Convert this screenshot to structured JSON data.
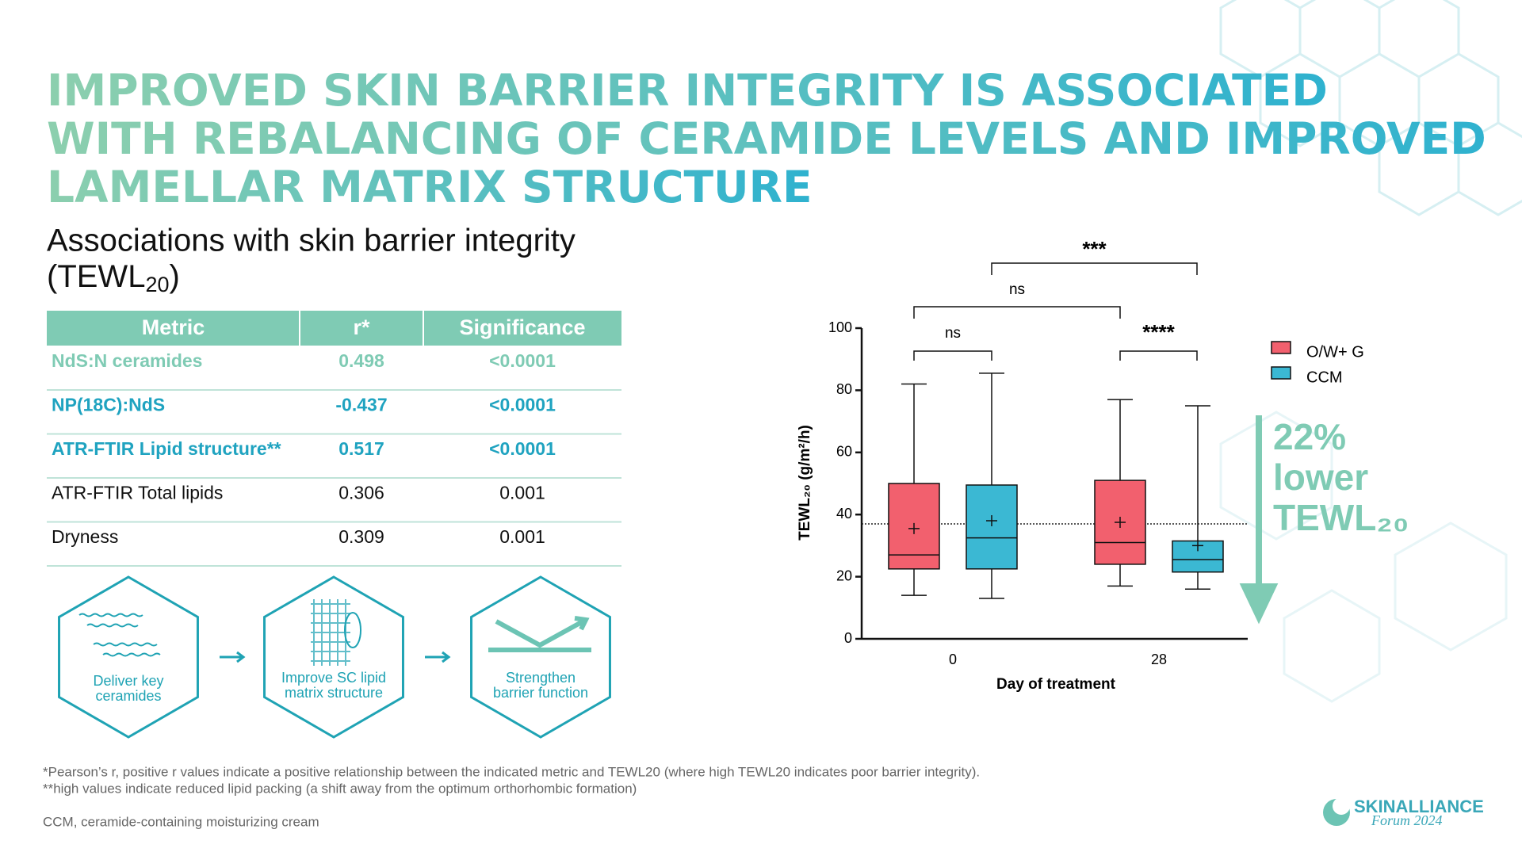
{
  "title": [
    "IMPROVED SKIN BARRIER INTEGRITY IS ASSOCIATED",
    "WITH REBALANCING OF CERAMIDE LEVELS AND IMPROVED",
    "LAMELLAR MATRIX STRUCTURE"
  ],
  "subtitle": [
    "Associations with skin barrier integrity",
    "(TEWL",
    "20",
    ")"
  ],
  "table": {
    "header": [
      "Metric",
      "r*",
      "Significance"
    ],
    "rows": [
      [
        "NdS:N ceramides",
        "0.498",
        "<0.0001"
      ],
      [
        "NP(18C):NdS",
        "-0.437",
        "<0.0001"
      ],
      [
        "ATR-FTIR Lipid structure**",
        "0.517",
        "<0.0001"
      ],
      [
        "ATR-FTIR Total lipids",
        "0.306",
        "0.001"
      ],
      [
        "Dryness",
        "0.309",
        "0.001"
      ]
    ]
  },
  "steps": [
    [
      "Deliver key",
      "ceramides"
    ],
    [
      "Improve SC lipid",
      "matrix structure"
    ],
    [
      "Strengthen",
      "barrier function"
    ]
  ],
  "chart_data": {
    "type": "box",
    "x_label": "Day of treatment",
    "y_label": "TEWL₂₀ (g/m²/h)",
    "categories": [
      "0",
      "28"
    ],
    "ylim": [
      0,
      100
    ],
    "yticks": [
      0,
      20,
      40,
      60,
      80,
      100
    ],
    "series": [
      {
        "name": "O/W+ G",
        "color": "#f2606e",
        "min": [
          14,
          17
        ],
        "q1": [
          22.5,
          24
        ],
        "median": [
          27,
          31
        ],
        "q3": [
          50,
          51
        ],
        "max": [
          82,
          77
        ],
        "mean": [
          35.5,
          37.5
        ]
      },
      {
        "name": "CCM",
        "color": "#3bb8d3",
        "min": [
          13,
          16
        ],
        "q1": [
          22.5,
          21.5
        ],
        "median": [
          32.5,
          25.5
        ],
        "q3": [
          49.5,
          31.5
        ],
        "max": [
          85.5,
          75
        ],
        "mean": [
          38,
          30
        ]
      }
    ],
    "reference_line": 37,
    "annotations": [
      "ns",
      "****",
      "ns",
      "***"
    ],
    "callout": [
      "22%",
      "lower",
      "TEWL₂₀"
    ]
  },
  "footnotes": [
    "*Pearson’s r, positive r values indicate a positive relationship between the indicated metric and TEWL20 (where high TEWL20 indicates poor barrier integrity).",
    "**high values indicate reduced lipid packing (a shift away from the optimum orthorhombic formation)",
    "CCM, ceramide-containing moisturizing cream"
  ],
  "logo": [
    "SKINALLIANCE",
    "Forum 2024"
  ]
}
